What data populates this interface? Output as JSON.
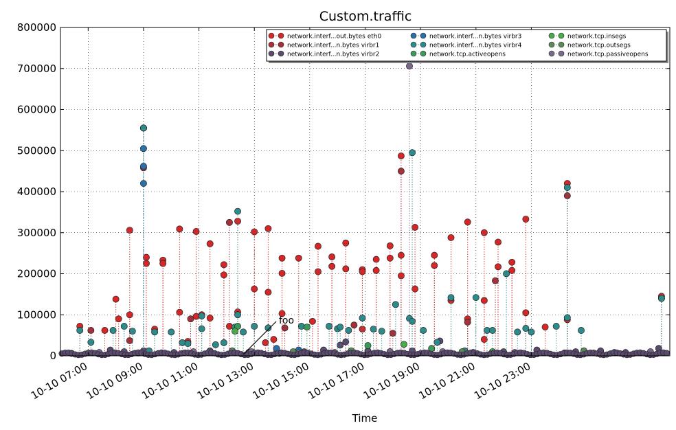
{
  "chart_data": {
    "type": "scatter",
    "title": "Custom.traffic",
    "xlabel": "Time",
    "ylabel": "",
    "ylim": [
      0,
      800000
    ],
    "xlim_hours": [
      6.0,
      28.0
    ],
    "grid": true,
    "yticks": [
      0,
      100000,
      200000,
      300000,
      400000,
      500000,
      600000,
      700000,
      800000
    ],
    "xticks": [
      {
        "hour": 7,
        "label": "10-10 07:00"
      },
      {
        "hour": 9,
        "label": "10-10 09:00"
      },
      {
        "hour": 11,
        "label": "10-10 11:00"
      },
      {
        "hour": 13,
        "label": "10-10 13:00"
      },
      {
        "hour": 15,
        "label": "10-10 15:00"
      },
      {
        "hour": 17,
        "label": "10-10 17:00"
      },
      {
        "hour": 19,
        "label": "10-10 19:00"
      },
      {
        "hour": 21,
        "label": "10-10 21:00"
      },
      {
        "hour": 23,
        "label": "10-10 23:00"
      }
    ],
    "legend_position": "top-right",
    "annotation": {
      "text": "foo",
      "hour": 12.6,
      "value": 0
    },
    "series": [
      {
        "name": "network.interf...out.bytes eth0",
        "color": "#d62728",
        "points": [
          [
            6.7,
            72000
          ],
          [
            7.6,
            62000
          ],
          [
            8.0,
            138000
          ],
          [
            8.1,
            90000
          ],
          [
            8.5,
            306000
          ],
          [
            8.5,
            100000
          ],
          [
            9.1,
            240000
          ],
          [
            9.1,
            225000
          ],
          [
            9.4,
            65000
          ],
          [
            9.7,
            233000
          ],
          [
            9.7,
            225000
          ],
          [
            10.3,
            309000
          ],
          [
            10.3,
            106000
          ],
          [
            10.6,
            35000
          ],
          [
            10.9,
            303000
          ],
          [
            10.9,
            96000
          ],
          [
            11.1,
            100000
          ],
          [
            11.4,
            273000
          ],
          [
            11.4,
            92000
          ],
          [
            11.9,
            222000
          ],
          [
            11.9,
            197000
          ],
          [
            12.1,
            72000
          ],
          [
            12.4,
            328000
          ],
          [
            12.4,
            107000
          ],
          [
            13.0,
            302000
          ],
          [
            13.0,
            163000
          ],
          [
            13.5,
            310000
          ],
          [
            13.5,
            155000
          ],
          [
            13.4,
            32000
          ],
          [
            13.7,
            40000
          ],
          [
            14.0,
            238000
          ],
          [
            14.0,
            201000
          ],
          [
            14.0,
            103000
          ],
          [
            14.6,
            238000
          ],
          [
            15.1,
            84000
          ],
          [
            15.3,
            267000
          ],
          [
            15.3,
            205000
          ],
          [
            15.8,
            241000
          ],
          [
            15.8,
            218000
          ],
          [
            16.3,
            275000
          ],
          [
            16.3,
            212000
          ],
          [
            16.9,
            210000
          ],
          [
            16.9,
            205000
          ],
          [
            16.9,
            65000
          ],
          [
            17.4,
            235000
          ],
          [
            17.4,
            208000
          ],
          [
            17.9,
            268000
          ],
          [
            17.9,
            238000
          ],
          [
            18.3,
            487000
          ],
          [
            18.3,
            245000
          ],
          [
            18.3,
            195000
          ],
          [
            18.8,
            313000
          ],
          [
            18.8,
            163000
          ],
          [
            19.5,
            245000
          ],
          [
            19.5,
            220000
          ],
          [
            20.1,
            288000
          ],
          [
            20.1,
            135000
          ],
          [
            20.7,
            326000
          ],
          [
            20.7,
            90000
          ],
          [
            21.3,
            300000
          ],
          [
            21.3,
            135000
          ],
          [
            21.3,
            40000
          ],
          [
            21.8,
            277000
          ],
          [
            21.8,
            217000
          ],
          [
            22.3,
            228000
          ],
          [
            22.3,
            208000
          ],
          [
            22.8,
            333000
          ],
          [
            22.8,
            105000
          ],
          [
            23.5,
            70000
          ],
          [
            24.3,
            420000
          ],
          [
            24.3,
            88000
          ],
          [
            27.7,
            145000
          ]
        ]
      },
      {
        "name": "network.interf...n.bytes virbr1",
        "color": "#a3303a",
        "points": [
          [
            7.1,
            62000
          ],
          [
            8.5,
            37000
          ],
          [
            9.0,
            555000
          ],
          [
            9.0,
            458000
          ],
          [
            10.7,
            90000
          ],
          [
            12.1,
            325000
          ],
          [
            14.1,
            68000
          ],
          [
            16.6,
            75000
          ],
          [
            18.0,
            55000
          ],
          [
            18.3,
            450000
          ],
          [
            20.7,
            82000
          ],
          [
            21.7,
            183000
          ],
          [
            24.3,
            390000
          ],
          [
            27.7,
            140000
          ]
        ]
      },
      {
        "name": "network.interf...n.bytes virbr2",
        "color": "#5a4a6e",
        "points": [
          [
            7.8,
            14000
          ],
          [
            8.3,
            10000
          ],
          [
            9.0,
            12000
          ],
          [
            10.1,
            8000
          ],
          [
            11.4,
            12000
          ],
          [
            12.8,
            8000
          ],
          [
            13.9,
            6000
          ],
          [
            14.8,
            10000
          ],
          [
            15.5,
            14000
          ],
          [
            16.1,
            26000
          ],
          [
            16.3,
            34000
          ],
          [
            17.1,
            12000
          ],
          [
            17.9,
            10000
          ],
          [
            18.7,
            12000
          ],
          [
            19.7,
            36000
          ],
          [
            20.9,
            8000
          ],
          [
            22.0,
            10000
          ],
          [
            23.2,
            14000
          ],
          [
            24.6,
            10000
          ],
          [
            25.5,
            12000
          ],
          [
            26.4,
            8000
          ],
          [
            27.6,
            18000
          ]
        ]
      },
      {
        "name": "network.interf...n.bytes virbr3",
        "color": "#2a6fa8",
        "points": [
          [
            9.0,
            555000
          ],
          [
            9.0,
            505000
          ],
          [
            9.0,
            462000
          ],
          [
            9.0,
            420000
          ],
          [
            13.8,
            18000
          ],
          [
            14.6,
            14000
          ]
        ]
      },
      {
        "name": "network.interf...n.bytes virbr4",
        "color": "#2e8b8b",
        "points": [
          [
            6.7,
            62000
          ],
          [
            7.1,
            33000
          ],
          [
            7.9,
            62000
          ],
          [
            8.3,
            72000
          ],
          [
            8.6,
            60000
          ],
          [
            9.0,
            555000
          ],
          [
            9.2,
            12000
          ],
          [
            9.4,
            58000
          ],
          [
            10.0,
            58000
          ],
          [
            10.4,
            32000
          ],
          [
            10.6,
            30000
          ],
          [
            11.1,
            97000
          ],
          [
            11.1,
            66000
          ],
          [
            11.6,
            27000
          ],
          [
            11.9,
            32000
          ],
          [
            12.3,
            70000
          ],
          [
            12.4,
            352000
          ],
          [
            12.4,
            100000
          ],
          [
            12.6,
            58000
          ],
          [
            13.0,
            72000
          ],
          [
            13.5,
            68000
          ],
          [
            14.7,
            72000
          ],
          [
            15.7,
            72000
          ],
          [
            16.0,
            66000
          ],
          [
            16.1,
            70000
          ],
          [
            16.4,
            62000
          ],
          [
            16.9,
            92000
          ],
          [
            17.3,
            65000
          ],
          [
            17.6,
            60000
          ],
          [
            18.1,
            125000
          ],
          [
            18.6,
            91000
          ],
          [
            18.7,
            495000
          ],
          [
            18.7,
            84000
          ],
          [
            19.1,
            62000
          ],
          [
            19.6,
            33000
          ],
          [
            20.1,
            142000
          ],
          [
            20.6,
            12000
          ],
          [
            21.0,
            142000
          ],
          [
            21.4,
            62000
          ],
          [
            21.6,
            62000
          ],
          [
            22.1,
            200000
          ],
          [
            22.5,
            58000
          ],
          [
            22.8,
            67000
          ],
          [
            23.0,
            58000
          ],
          [
            23.9,
            72000
          ],
          [
            24.3,
            410000
          ],
          [
            24.3,
            93000
          ],
          [
            24.8,
            62000
          ],
          [
            27.7,
            140000
          ]
        ]
      },
      {
        "name": "network.tcp.activeopens",
        "color": "#3a9a5a",
        "points": [
          [
            12.4,
            72000
          ],
          [
            14.9,
            70000
          ],
          [
            17.1,
            25000
          ],
          [
            19.4,
            18000
          ]
        ]
      },
      {
        "name": "network.tcp.insegs",
        "color": "#4aaa4a",
        "points": [
          [
            12.3,
            60000
          ],
          [
            16.5,
            12000
          ],
          [
            18.4,
            28000
          ],
          [
            21.6,
            10000
          ]
        ]
      },
      {
        "name": "network.tcp.outsegs",
        "color": "#5a8a5a",
        "points": [
          [
            12.2,
            12000
          ],
          [
            14.4,
            10000
          ],
          [
            20.5,
            10000
          ],
          [
            24.9,
            12000
          ]
        ]
      },
      {
        "name": "network.tcp.passiveopens",
        "color": "#7a6a8a",
        "points": [
          [
            6.4,
            6000
          ],
          [
            7.4,
            8000
          ],
          [
            8.8,
            7000
          ],
          [
            10.8,
            10000
          ],
          [
            12.9,
            10000
          ],
          [
            14.6,
            7000
          ],
          [
            15.9,
            8000
          ],
          [
            17.9,
            10000
          ],
          [
            18.6,
            706000
          ],
          [
            19.8,
            10000
          ],
          [
            22.4,
            8000
          ],
          [
            24.2,
            7000
          ],
          [
            26.0,
            8000
          ],
          [
            27.3,
            10000
          ]
        ]
      }
    ]
  }
}
